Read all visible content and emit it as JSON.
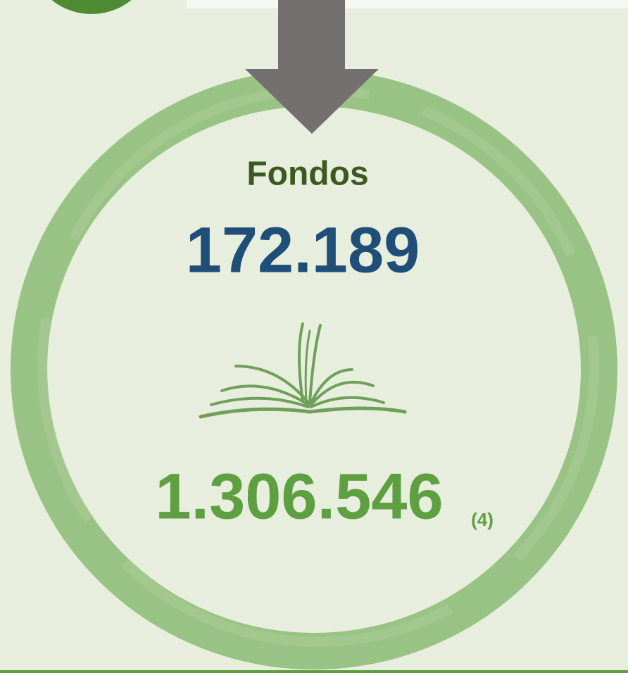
{
  "panel": {
    "title": "Fondos",
    "primary_figure": "172.189",
    "secondary_figure": "1.306.546",
    "footnote_ref": "(4)"
  }
}
